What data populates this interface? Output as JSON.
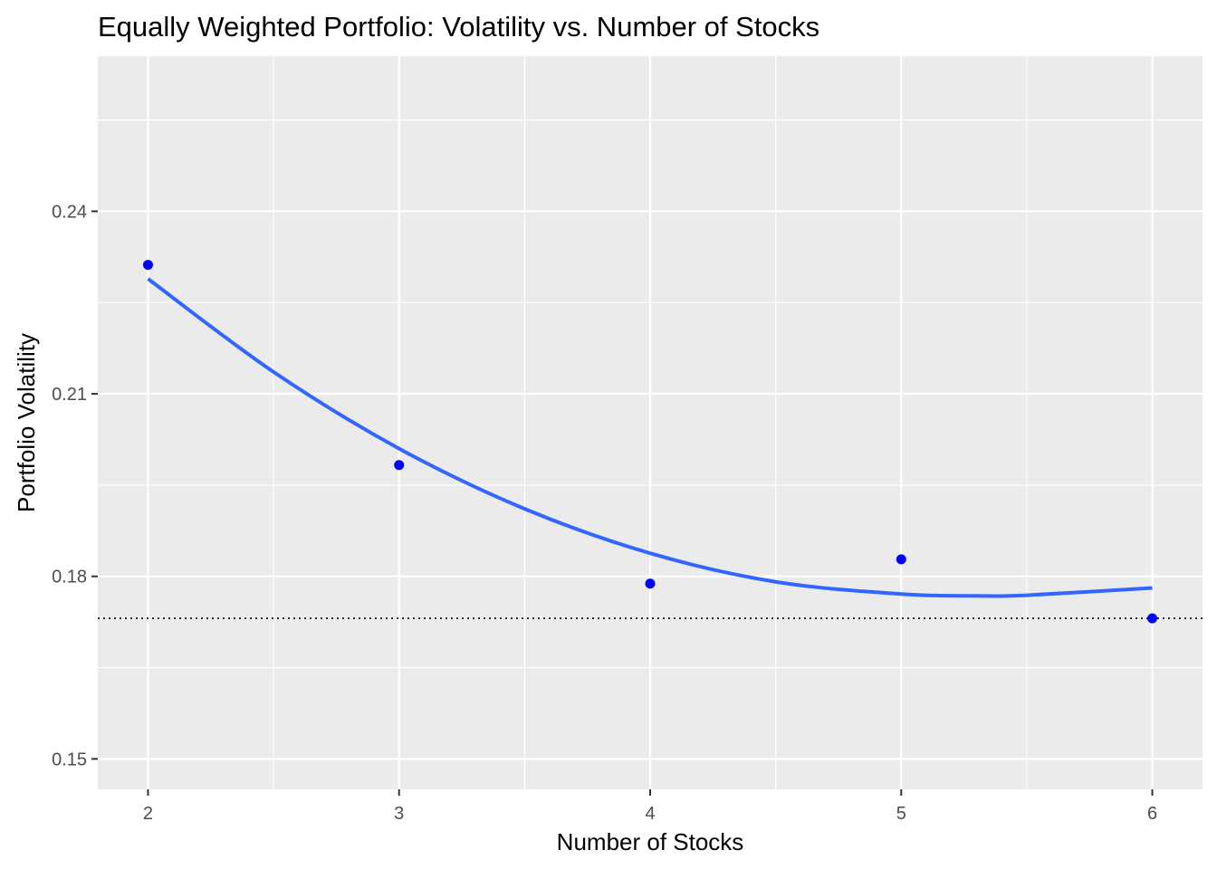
{
  "chart_data": {
    "type": "scatter",
    "title": "Equally Weighted Portfolio: Volatility vs. Number of Stocks",
    "xlabel": "Number of Stocks",
    "ylabel": "Portfolio Volatility",
    "x_ticks": [
      2,
      3,
      4,
      5,
      6
    ],
    "x_tick_labels": [
      "2",
      "3",
      "4",
      "5",
      "6"
    ],
    "y_ticks": [
      0.15,
      0.18,
      0.21,
      0.24
    ],
    "y_tick_labels": [
      "0.15",
      "0.18",
      "0.21",
      "0.24"
    ],
    "xlim": [
      1.8,
      6.2
    ],
    "ylim": [
      0.145,
      0.2655
    ],
    "grid": true,
    "points": {
      "x": [
        2,
        3,
        4,
        5,
        6
      ],
      "y": [
        0.2312,
        0.1983,
        0.1788,
        0.1828,
        0.1731
      ],
      "color": "#0000ff"
    },
    "fit_line": {
      "method": "quadratic smooth",
      "x": [
        2.0,
        2.5,
        3.0,
        3.5,
        4.0,
        4.5,
        5.0,
        5.3,
        5.5,
        6.0
      ],
      "y": [
        0.2289,
        0.2136,
        0.201,
        0.1911,
        0.1838,
        0.1791,
        0.1771,
        0.1768,
        0.1769,
        0.1781
      ],
      "color": "#3366ff"
    },
    "reference_line": {
      "orientation": "horizontal",
      "y": 0.1731,
      "style": "dotted",
      "color": "#000000"
    },
    "panel_background": "#ebebeb",
    "grid_color": "#ffffff"
  }
}
